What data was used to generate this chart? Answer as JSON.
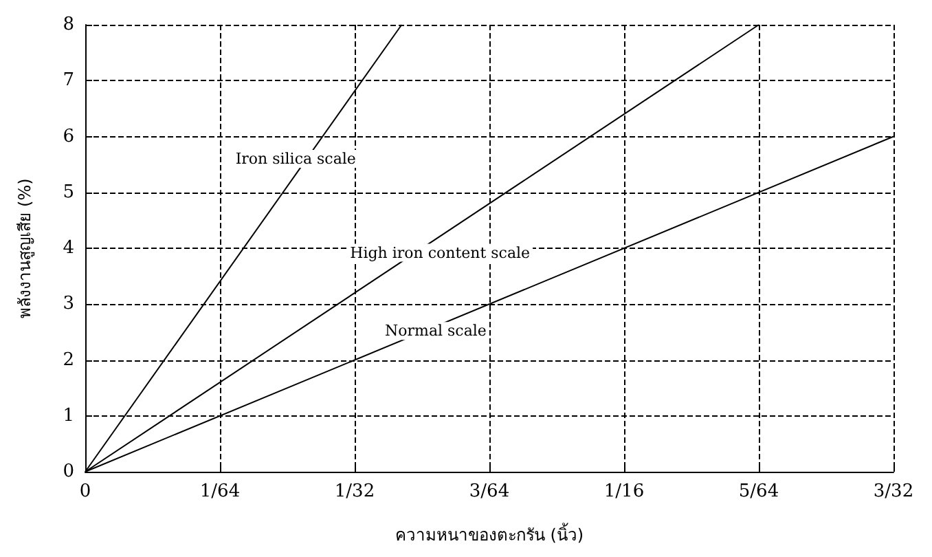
{
  "chart_data": {
    "type": "line",
    "xlabel": "ความหนาของตะกรัน (นิ้ว)",
    "ylabel": "พลังงานสูญเสีย (%)",
    "series": [
      {
        "name": "Iron silica scale",
        "color": "#000000",
        "x": [
          0,
          0.0367
        ],
        "values": [
          0,
          8
        ]
      },
      {
        "name": "High iron content scale",
        "color": "#000000",
        "x": [
          0,
          0.078125
        ],
        "values": [
          0,
          8
        ]
      },
      {
        "name": "Normal scale",
        "color": "#000000",
        "x": [
          0,
          0.09375
        ],
        "values": [
          0,
          6
        ]
      }
    ],
    "xlim": [
      0,
      0.09375
    ],
    "xticks": [
      0,
      {
        "value": 0.015625,
        "label": "1/64"
      },
      {
        "value": 0.03125,
        "label": "1/32"
      },
      {
        "value": 0.046875,
        "label": "3/64"
      },
      {
        "value": 0.0625,
        "label": "1/16"
      },
      {
        "value": 0.078125,
        "label": "5/64"
      },
      {
        "value": 0.09375,
        "label": "3/32"
      }
    ],
    "ylim": [
      0,
      8
    ],
    "yticks": [
      0,
      1,
      2,
      3,
      4,
      5,
      6,
      7,
      8
    ],
    "grid": true,
    "marker": "none",
    "line_style": "solid"
  }
}
